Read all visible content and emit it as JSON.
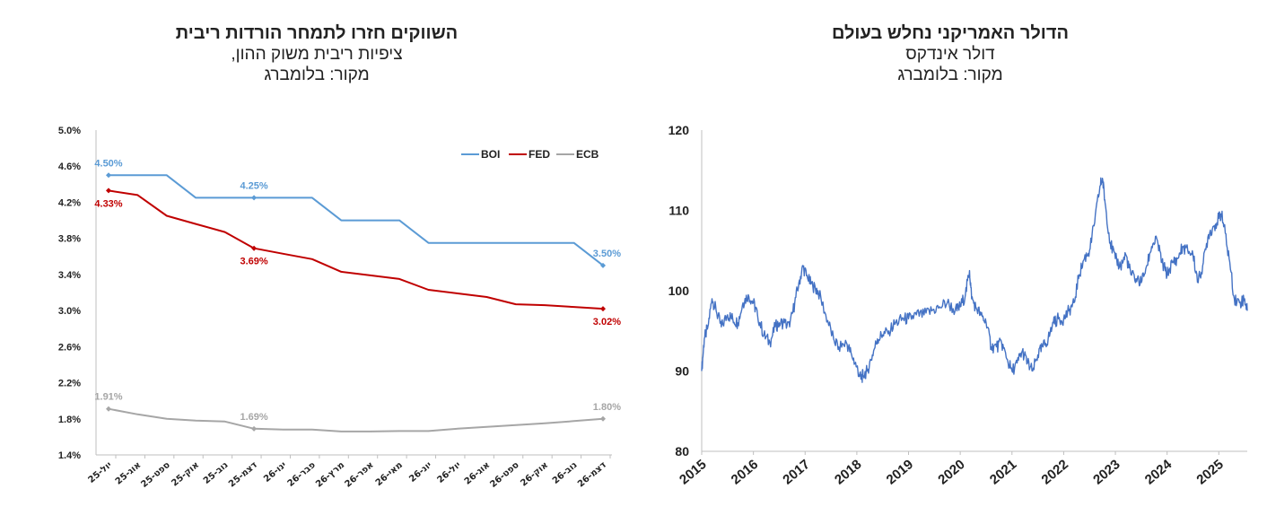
{
  "left": {
    "title": "השווקים חזרו לתמחר הורדות ריבית",
    "subtitle": "ציפיות ריבית משוק ההון,",
    "source": "מקור: בלומברג"
  },
  "right": {
    "title": "הדולר האמריקני נחלש בעולם",
    "subtitle": "דולר אינדקס",
    "source": "מקור: בלומברג"
  },
  "chart_data": [
    {
      "type": "line",
      "title": "השווקים חזרו לתמחר הורדות ריבית",
      "categories": [
        "יול-25",
        "אוג-25",
        "ספט-25",
        "אוק-25",
        "נוב-25",
        "דצמ-25",
        "ינו-26",
        "פבר-26",
        "מרץ-26",
        "אפר-26",
        "מאי-26",
        "יונ-26",
        "יול-26",
        "אוג-26",
        "ספט-26",
        "אוק-26",
        "נוב-26",
        "דצמ-26"
      ],
      "ylim": [
        1.4,
        5.0
      ],
      "yticks": [
        "1.4%",
        "1.8%",
        "2.2%",
        "2.6%",
        "3.0%",
        "3.4%",
        "3.8%",
        "4.2%",
        "4.6%",
        "5.0%"
      ],
      "legend": "top-right",
      "grid": false,
      "series": [
        {
          "name": "BOI",
          "color": "#5B9BD5",
          "values": [
            4.5,
            4.5,
            4.5,
            4.25,
            4.25,
            4.25,
            4.25,
            4.25,
            4.0,
            4.0,
            4.0,
            3.75,
            3.75,
            3.75,
            3.75,
            3.75,
            3.75,
            3.5
          ],
          "labels": [
            {
              "i": 0,
              "text": "4.50%",
              "pos": "above"
            },
            {
              "i": 5,
              "text": "4.25%",
              "pos": "above"
            },
            {
              "i": 17,
              "text": "3.50%",
              "pos": "above"
            }
          ]
        },
        {
          "name": "FED",
          "color": "#C00000",
          "values": [
            4.33,
            4.28,
            4.05,
            3.96,
            3.87,
            3.69,
            3.63,
            3.57,
            3.43,
            3.39,
            3.35,
            3.23,
            3.19,
            3.15,
            3.07,
            3.06,
            3.04,
            3.02
          ],
          "labels": [
            {
              "i": 0,
              "text": "4.33%",
              "pos": "below"
            },
            {
              "i": 5,
              "text": "3.69%",
              "pos": "below"
            },
            {
              "i": 17,
              "text": "3.02%",
              "pos": "below"
            }
          ]
        },
        {
          "name": "ECB",
          "color": "#A6A6A6",
          "values": [
            1.91,
            1.85,
            1.8,
            1.78,
            1.77,
            1.69,
            1.68,
            1.68,
            1.66,
            1.66,
            1.665,
            1.665,
            1.69,
            1.71,
            1.73,
            1.75,
            1.775,
            1.8
          ],
          "labels": [
            {
              "i": 0,
              "text": "1.91%",
              "pos": "above"
            },
            {
              "i": 5,
              "text": "1.69%",
              "pos": "above"
            },
            {
              "i": 17,
              "text": "1.80%",
              "pos": "above"
            }
          ]
        }
      ]
    },
    {
      "type": "line",
      "title": "הדולר האמריקני נחלש בעולם",
      "ylim": [
        80,
        120
      ],
      "yticks": [
        "80",
        "90",
        "100",
        "110",
        "120"
      ],
      "xticks": [
        "2015",
        "2016",
        "2017",
        "2018",
        "2019",
        "2020",
        "2021",
        "2022",
        "2023",
        "2024",
        "2025"
      ],
      "xlim": [
        2015.0,
        2025.55
      ],
      "grid": false,
      "series": [
        {
          "name": "DXY",
          "color": "#4472C4",
          "x": [
            2015.0,
            2015.05,
            2015.12,
            2015.2,
            2015.28,
            2015.38,
            2015.5,
            2015.6,
            2015.7,
            2015.8,
            2015.9,
            2016.0,
            2016.08,
            2016.2,
            2016.32,
            2016.42,
            2016.5,
            2016.6,
            2016.7,
            2016.8,
            2016.88,
            2016.96,
            2017.05,
            2017.15,
            2017.25,
            2017.4,
            2017.55,
            2017.65,
            2017.8,
            2017.9,
            2018.0,
            2018.08,
            2018.12,
            2018.2,
            2018.3,
            2018.4,
            2018.5,
            2018.62,
            2018.75,
            2018.9,
            2019.0,
            2019.15,
            2019.3,
            2019.45,
            2019.6,
            2019.75,
            2019.9,
            2020.0,
            2020.1,
            2020.18,
            2020.22,
            2020.3,
            2020.4,
            2020.5,
            2020.6,
            2020.7,
            2020.8,
            2020.9,
            2021.0,
            2021.1,
            2021.2,
            2021.3,
            2021.4,
            2021.5,
            2021.6,
            2021.7,
            2021.8,
            2021.9,
            2022.0,
            2022.1,
            2022.2,
            2022.3,
            2022.4,
            2022.5,
            2022.6,
            2022.7,
            2022.75,
            2022.8,
            2022.9,
            2023.0,
            2023.1,
            2023.2,
            2023.3,
            2023.4,
            2023.5,
            2023.6,
            2023.7,
            2023.8,
            2023.9,
            2024.0,
            2024.1,
            2024.2,
            2024.3,
            2024.4,
            2024.5,
            2024.6,
            2024.7,
            2024.8,
            2024.9,
            2025.0,
            2025.05,
            2025.1,
            2025.2,
            2025.3,
            2025.4,
            2025.5,
            2025.55
          ],
          "values": [
            90,
            94,
            95.5,
            99,
            97.5,
            95.5,
            97,
            96.5,
            96,
            98.5,
            99.5,
            98.5,
            97,
            94.5,
            93.5,
            95.5,
            96,
            96,
            95.5,
            98.5,
            101,
            103,
            101.5,
            100.5,
            100,
            97,
            94,
            93,
            93.5,
            92,
            90.5,
            89,
            89.5,
            90,
            92,
            94,
            94.5,
            95,
            96,
            96.5,
            96.5,
            97,
            97,
            97.5,
            98,
            98.5,
            97.5,
            98,
            99.5,
            102.5,
            99,
            98,
            97,
            96,
            93,
            93,
            93.5,
            91.5,
            90,
            91,
            92.5,
            91,
            90,
            92,
            93,
            94,
            96,
            96.5,
            96.5,
            97.5,
            98.5,
            102,
            104,
            105,
            108.5,
            113,
            114,
            111,
            106,
            104,
            103,
            104.5,
            102,
            101.5,
            101,
            103,
            105.5,
            106.5,
            103.5,
            102,
            103.5,
            104,
            105.5,
            105,
            104.5,
            101,
            103.5,
            107,
            108,
            109,
            109.5,
            108,
            104,
            99,
            98.5,
            99,
            97.5
          ]
        }
      ]
    }
  ]
}
